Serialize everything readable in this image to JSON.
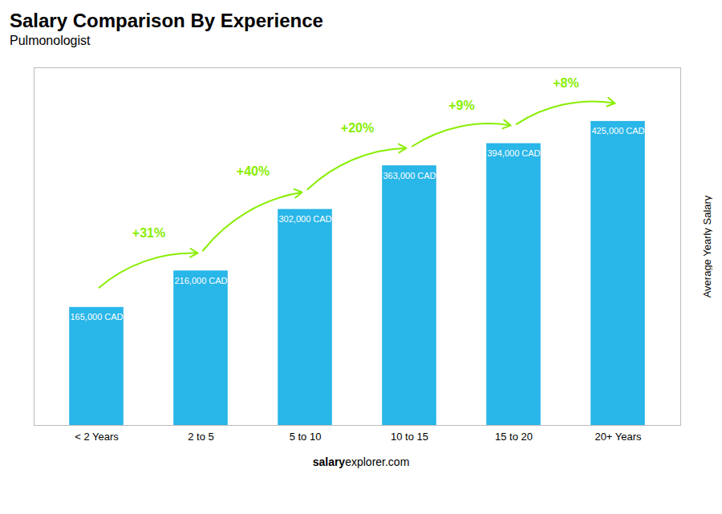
{
  "chart_data": {
    "type": "bar",
    "title": "Salary Comparison By Experience",
    "subtitle": "Pulmonologist",
    "ylabel": "Average Yearly Salary",
    "footer": [
      "salary",
      "explorer.com"
    ],
    "categories": [
      "< 2 Years",
      "2 to 5",
      "5 to 10",
      "10 to 15",
      "15 to 20",
      "20+ Years"
    ],
    "values": [
      165000,
      216000,
      302000,
      363000,
      394000,
      425000
    ],
    "value_labels": [
      "165,000 CAD",
      "216,000 CAD",
      "302,000 CAD",
      "363,000 CAD",
      "394,000 CAD",
      "425,000 CAD"
    ],
    "data_labels": true,
    "color": "#29b6e8",
    "ylim": [
      0,
      500000
    ],
    "tick_labels": "x",
    "grid": false,
    "annotations": [
      {
        "text": "+31%",
        "color": "#88ee00"
      },
      {
        "text": "+40%",
        "color": "#88ee00"
      },
      {
        "text": "+20%",
        "color": "#88ee00"
      },
      {
        "text": "+9%",
        "color": "#88ee00"
      },
      {
        "text": "+8%",
        "color": "#88ee00"
      }
    ]
  }
}
